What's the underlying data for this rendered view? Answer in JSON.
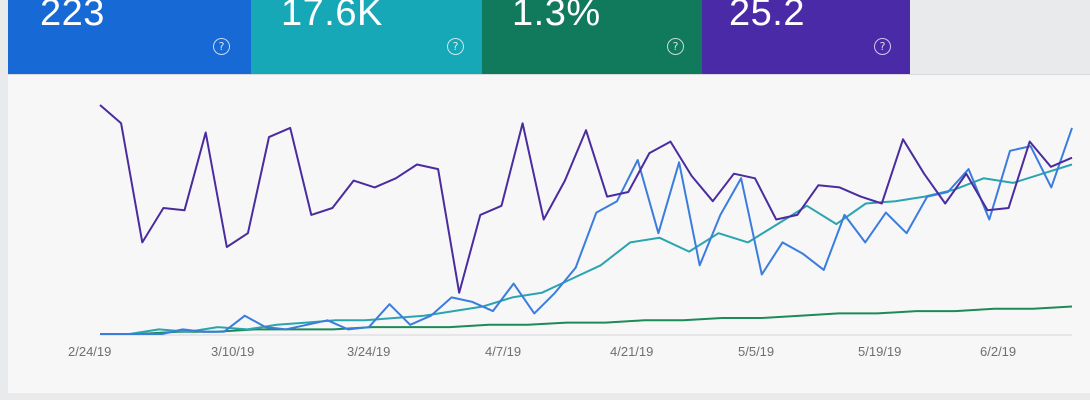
{
  "cards": [
    {
      "value": "223",
      "color": "#1769d6",
      "icon": "help-circle-icon"
    },
    {
      "value": "17.6K",
      "color": "#16a8b6",
      "icon": "help-circle-icon"
    },
    {
      "value": "1.3%",
      "color": "#117a5c",
      "icon": "help-circle-icon"
    },
    {
      "value": "25.2",
      "color": "#4a2aa6",
      "icon": "help-circle-icon"
    }
  ],
  "help_glyph": "?",
  "chart_data": {
    "type": "line",
    "x_tick_labels": [
      "2/24/19",
      "3/10/19",
      "3/24/19",
      "4/7/19",
      "4/21/19",
      "5/5/19",
      "5/19/19",
      "6/2/19"
    ],
    "grid": false,
    "legend": "none",
    "series_colors": [
      "#4b2c9e",
      "#3b7ddd",
      "#2aa5b0",
      "#1e8a57"
    ],
    "series": [
      {
        "color": "#4b2c9e",
        "values": [
          100,
          92,
          40,
          55,
          54,
          88,
          38,
          44,
          86,
          90,
          52,
          55,
          67,
          64,
          68,
          74,
          72,
          18,
          52,
          56,
          92,
          50,
          67,
          89,
          60,
          62,
          79,
          84,
          69,
          58,
          70,
          68,
          50,
          52,
          65,
          64,
          60,
          57,
          85,
          70,
          57,
          70,
          54,
          55,
          84,
          73,
          77
        ]
      },
      {
        "color": "#3b7ddd",
        "values": [
          0,
          0,
          0,
          0,
          2,
          1,
          1,
          8,
          3,
          2,
          4,
          6,
          2,
          3,
          13,
          4,
          8,
          16,
          14,
          10,
          22,
          9,
          18,
          29,
          53,
          58,
          76,
          44,
          75,
          30,
          52,
          68,
          26,
          40,
          35,
          28,
          52,
          40,
          53,
          44,
          60,
          62,
          72,
          50,
          80,
          82,
          64,
          90
        ]
      },
      {
        "color": "#2aa5b0",
        "values": [
          0,
          0,
          2,
          1,
          3,
          2,
          4,
          5,
          6,
          6,
          7,
          8,
          10,
          12,
          16,
          18,
          24,
          30,
          40,
          42,
          36,
          44,
          40,
          48,
          56,
          48,
          57,
          58,
          60,
          63,
          68,
          66,
          70,
          74
        ]
      },
      {
        "color": "#1e8a57",
        "values": [
          0,
          0,
          1,
          1,
          2,
          2,
          2,
          3,
          3,
          3,
          4,
          4,
          5,
          5,
          6,
          6,
          7,
          7,
          8,
          9,
          9,
          10,
          10,
          11,
          11,
          12
        ]
      }
    ],
    "ylim": [
      0,
      100
    ]
  }
}
